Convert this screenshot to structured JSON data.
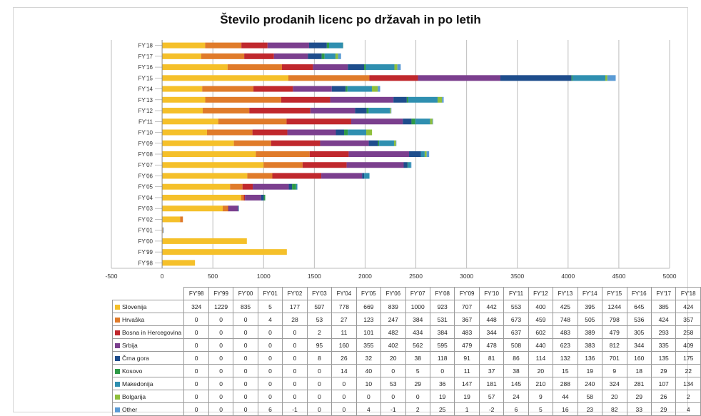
{
  "chart_data": {
    "type": "bar",
    "orientation": "horizontal",
    "stacked": true,
    "title": "Število prodanih licenc po državah in po letih",
    "categories": [
      "FY'98",
      "FY'99",
      "FY'00",
      "FY'01",
      "FY'02",
      "FY'03",
      "FY'04",
      "FY'05",
      "FY'06",
      "FY'07",
      "FY'08",
      "FY'09",
      "FY'10",
      "FY'11",
      "FY'12",
      "FY'13",
      "FY'14",
      "FY'15",
      "FY'16",
      "FY'17",
      "FY'18"
    ],
    "xlim": [
      -500,
      5000
    ],
    "xticks": [
      "-500",
      "0",
      "500",
      "1000",
      "1500",
      "2000",
      "2500",
      "3000",
      "3500",
      "4000",
      "4500",
      "5000"
    ],
    "grid": true,
    "legend": "data-table",
    "series": [
      {
        "name": "Slovenija",
        "color": "#f5c02a",
        "values": [
          324,
          1229,
          835,
          5,
          177,
          597,
          778,
          669,
          839,
          1000,
          923,
          707,
          442,
          553,
          400,
          425,
          395,
          1244,
          645,
          385,
          424
        ]
      },
      {
        "name": "Hrvaška",
        "color": "#e07b2a",
        "values": [
          0,
          0,
          0,
          4,
          28,
          53,
          27,
          123,
          247,
          384,
          531,
          367,
          448,
          673,
          459,
          748,
          505,
          798,
          536,
          424,
          357
        ]
      },
      {
        "name": "Bosna in Hercegovina",
        "color": "#c0282d",
        "values": [
          0,
          0,
          0,
          0,
          0,
          2,
          11,
          101,
          482,
          434,
          384,
          483,
          344,
          637,
          602,
          483,
          389,
          479,
          305,
          293,
          258
        ]
      },
      {
        "name": "Srbija",
        "color": "#7b3f8e",
        "values": [
          0,
          0,
          0,
          0,
          0,
          95,
          160,
          355,
          402,
          562,
          595,
          479,
          478,
          508,
          440,
          623,
          383,
          812,
          344,
          335,
          409
        ]
      },
      {
        "name": "Črna gora",
        "color": "#1e4d8c",
        "values": [
          0,
          0,
          0,
          0,
          0,
          8,
          26,
          32,
          20,
          38,
          118,
          91,
          81,
          86,
          114,
          132,
          136,
          701,
          160,
          135,
          175
        ]
      },
      {
        "name": "Kosovo",
        "color": "#2e9a47",
        "values": [
          0,
          0,
          0,
          0,
          0,
          0,
          14,
          40,
          0,
          5,
          0,
          11,
          37,
          38,
          20,
          15,
          19,
          9,
          18,
          29,
          22
        ]
      },
      {
        "name": "Makedonija",
        "color": "#2f8fb0",
        "values": [
          0,
          0,
          0,
          0,
          0,
          0,
          0,
          10,
          53,
          29,
          36,
          147,
          181,
          145,
          210,
          288,
          240,
          324,
          281,
          107,
          134
        ]
      },
      {
        "name": "Bolgarija",
        "color": "#8fbf3c",
        "values": [
          0,
          0,
          0,
          0,
          0,
          0,
          0,
          0,
          0,
          0,
          19,
          19,
          57,
          24,
          9,
          44,
          58,
          20,
          29,
          26,
          2
        ]
      },
      {
        "name": "Other",
        "color": "#5b9bd5",
        "values": [
          0,
          0,
          0,
          6,
          -1,
          0,
          0,
          4,
          -1,
          2,
          25,
          1,
          -2,
          6,
          5,
          16,
          23,
          82,
          33,
          29,
          4
        ]
      }
    ]
  }
}
